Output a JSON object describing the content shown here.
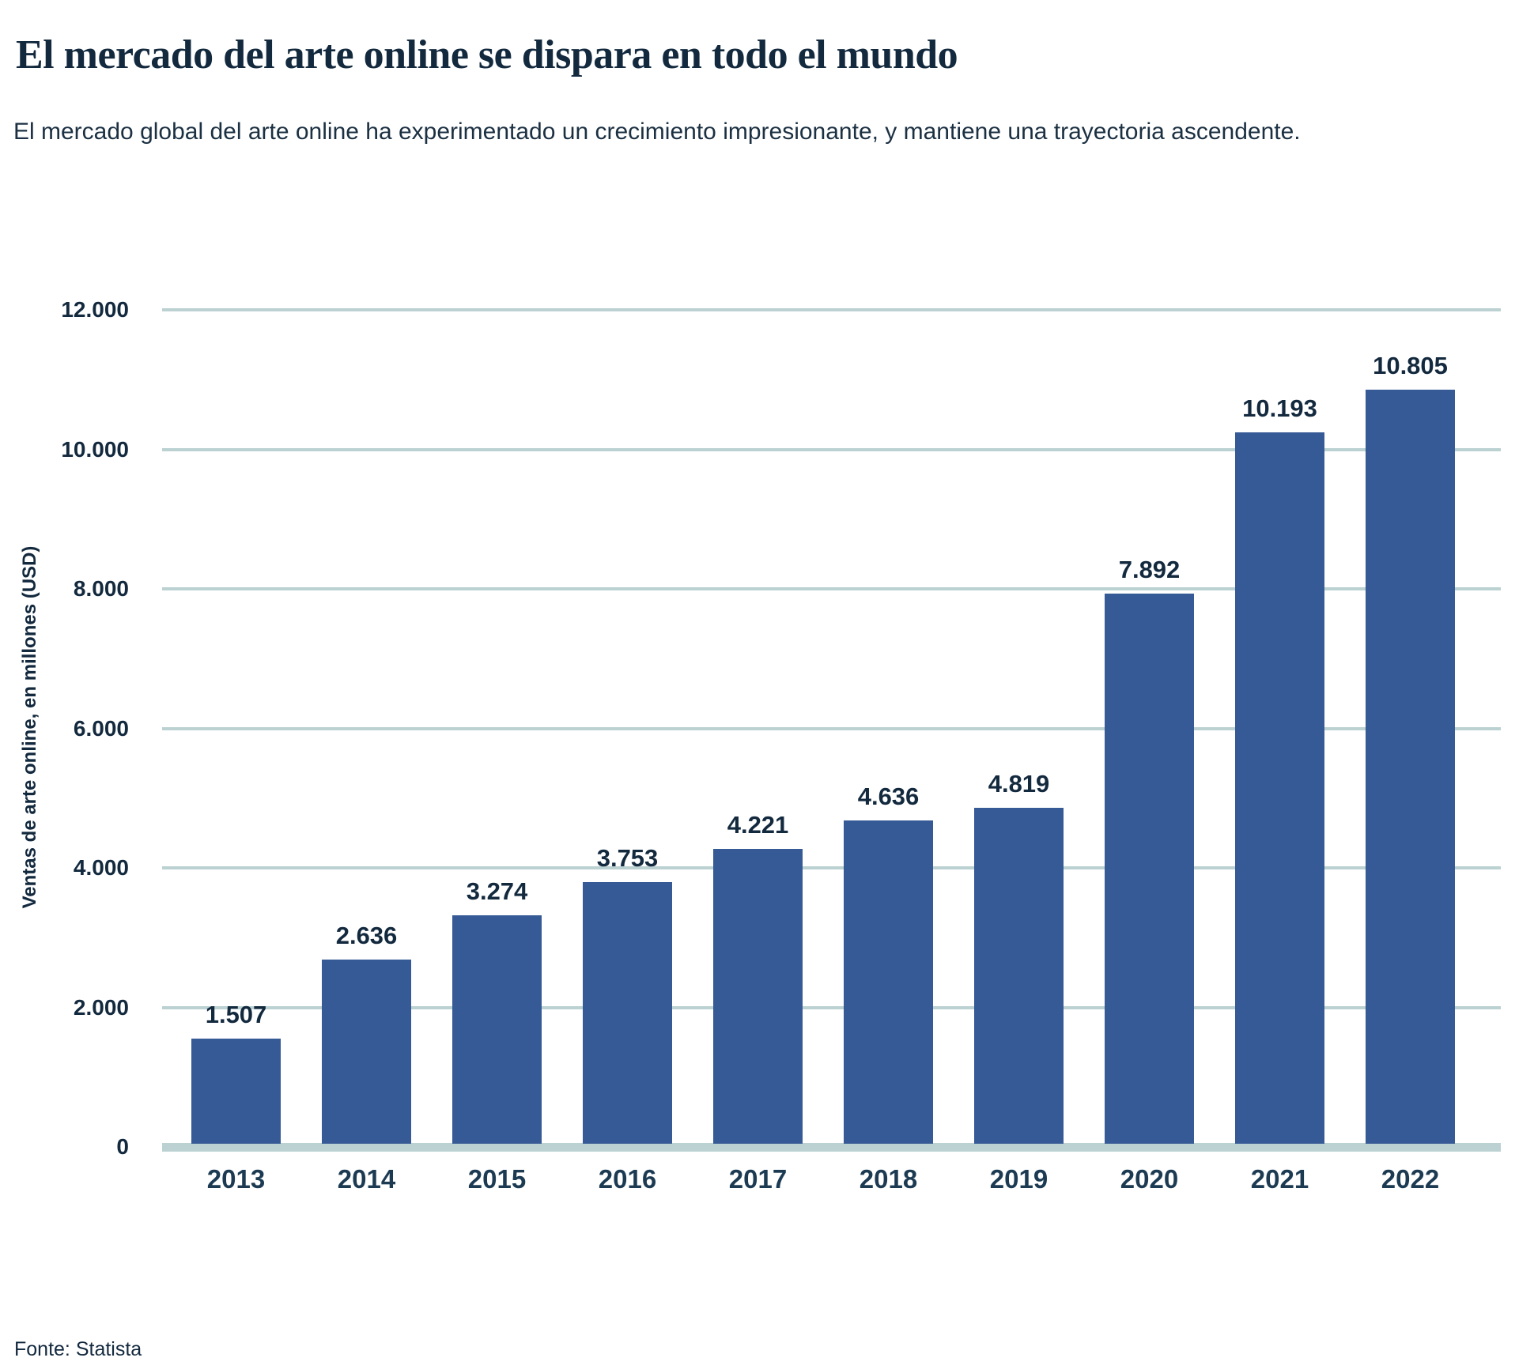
{
  "header": {
    "title": "El mercado del arte online se dispara en todo el mundo",
    "subtitle": "El mercado global del arte online ha experimentado un crecimiento impresionante, y mantiene una trayectoria ascendente."
  },
  "footer": {
    "source": "Fonte: Statista"
  },
  "colors": {
    "bar": "#365A96",
    "gridline": "#BBD1D2",
    "heading_text": "#13293E",
    "x_tick_text": "#1C3B53"
  },
  "chart_data": {
    "type": "bar",
    "title": "El mercado del arte online se dispara en todo el mundo",
    "subtitle": "El mercado global del arte online ha experimentado un crecimiento impresionante, y mantiene una trayectoria ascendente.",
    "categories": [
      "2013",
      "2014",
      "2015",
      "2016",
      "2017",
      "2018",
      "2019",
      "2020",
      "2021",
      "2022"
    ],
    "values": [
      1507,
      2636,
      3274,
      3753,
      4221,
      4636,
      4819,
      7892,
      10193,
      10805
    ],
    "value_labels": [
      "1.507",
      "2.636",
      "3.274",
      "3.753",
      "4.221",
      "4.636",
      "4.819",
      "7.892",
      "10.193",
      "10.805"
    ],
    "xlabel": "",
    "ylabel": "Ventas de arte online, en millones (USD)",
    "ylim": [
      0,
      12000
    ],
    "y_ticks": [
      {
        "value": 12000,
        "label": "12.000"
      },
      {
        "value": 10000,
        "label": "10.000"
      },
      {
        "value": 8000,
        "label": "8.000"
      },
      {
        "value": 6000,
        "label": "6.000"
      },
      {
        "value": 4000,
        "label": "4.000"
      },
      {
        "value": 2000,
        "label": "2.000"
      },
      {
        "value": 0,
        "label": "0"
      }
    ],
    "grid": "horizontal",
    "legend": "none",
    "source": "Fonte: Statista"
  }
}
